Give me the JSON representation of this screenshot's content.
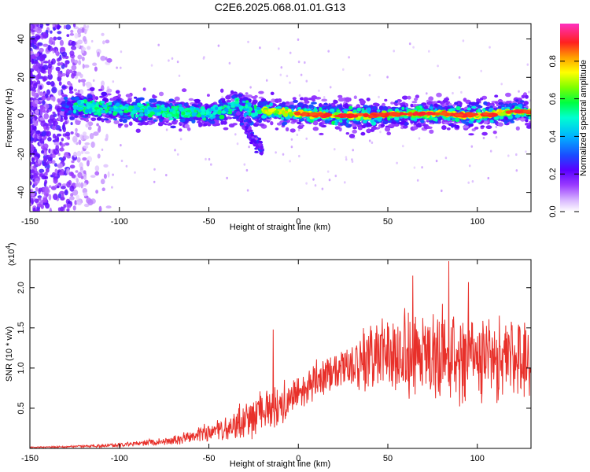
{
  "title": "C2E6.2025.068.01.01.G13",
  "chart_data": [
    {
      "type": "heatmap",
      "xlabel": "Height of straight line (km)",
      "ylabel": "Frequency (Hz)",
      "xlim": [
        -150,
        130
      ],
      "ylim": [
        -50,
        48
      ],
      "xticks": [
        -150,
        -100,
        -50,
        0,
        50,
        100
      ],
      "yticks": [
        -40,
        -20,
        0,
        20,
        40
      ],
      "colorbar": {
        "label": "Normalized spectral amplitude",
        "ticks": [
          0.0,
          0.2,
          0.4,
          0.6,
          0.8
        ],
        "range": [
          0,
          1
        ]
      },
      "ridge": {
        "description": "narrow band of high amplitude near 0 Hz",
        "points": [
          [
            -130,
            5
          ],
          [
            -110,
            4
          ],
          [
            -90,
            3
          ],
          [
            -70,
            2
          ],
          [
            -50,
            1
          ],
          [
            -40,
            3
          ],
          [
            -35,
            6
          ],
          [
            -25,
            3
          ],
          [
            -10,
            2
          ],
          [
            0,
            1
          ],
          [
            20,
            0
          ],
          [
            40,
            0
          ],
          [
            60,
            1
          ],
          [
            80,
            1
          ],
          [
            100,
            0
          ],
          [
            120,
            2
          ],
          [
            130,
            2
          ]
        ],
        "branch": [
          [
            -35,
            2
          ],
          [
            -30,
            -5
          ],
          [
            -25,
            -12
          ],
          [
            -20,
            -18
          ]
        ]
      }
    },
    {
      "type": "line",
      "xlabel": "Height of straight line (km)",
      "ylabel": "SNR (10 * v/v)",
      "multiplier_label": "(x10",
      "multiplier_exp": "4",
      "multiplier_close": ")",
      "xlim": [
        -150,
        130
      ],
      "ylim": [
        0,
        2.35
      ],
      "xticks": [
        -150,
        -100,
        -50,
        0,
        50,
        100
      ],
      "yticks": [
        0.5,
        1.0,
        1.5,
        2.0
      ],
      "ytick_labels": [
        "0.5",
        "1.0",
        "1.5",
        "2.0"
      ],
      "color": "#e8302a",
      "envelope": {
        "x": [
          -150,
          -130,
          -110,
          -90,
          -70,
          -60,
          -50,
          -40,
          -30,
          -20,
          -10,
          0,
          10,
          20,
          30,
          40,
          50,
          60,
          70,
          80,
          90,
          100,
          110,
          120,
          130
        ],
        "mean": [
          0.01,
          0.02,
          0.03,
          0.06,
          0.1,
          0.15,
          0.2,
          0.25,
          0.35,
          0.45,
          0.55,
          0.7,
          0.85,
          0.95,
          1.05,
          1.12,
          1.15,
          1.15,
          1.15,
          1.15,
          1.12,
          1.12,
          1.12,
          1.12,
          1.1
        ],
        "amp": [
          0.01,
          0.01,
          0.02,
          0.03,
          0.05,
          0.08,
          0.12,
          0.15,
          0.22,
          0.25,
          0.25,
          0.2,
          0.22,
          0.25,
          0.3,
          0.4,
          0.5,
          0.55,
          0.55,
          0.55,
          0.52,
          0.5,
          0.5,
          0.5,
          0.5
        ]
      },
      "peaks": [
        [
          -14,
          1.48
        ],
        [
          84,
          2.33
        ],
        [
          64,
          2.15
        ],
        [
          95,
          2.07
        ]
      ]
    }
  ]
}
